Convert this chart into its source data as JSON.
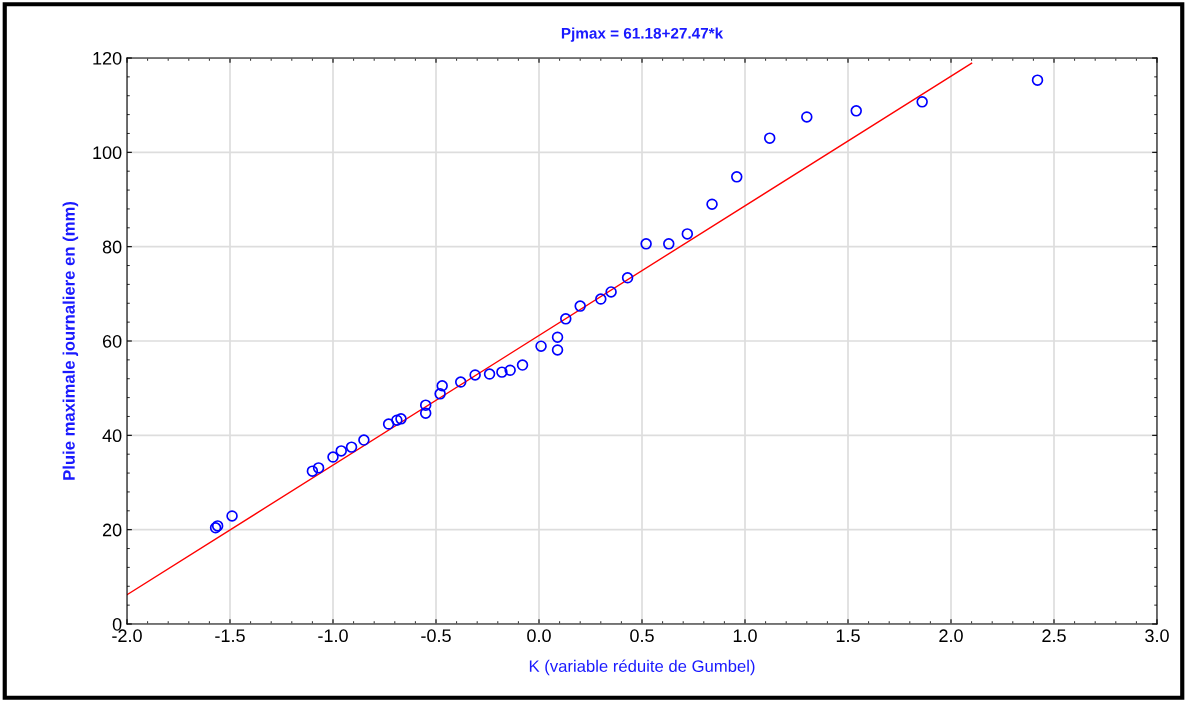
{
  "chart_data": {
    "type": "scatter",
    "title": "Pjmax = 61.18+27.47*k",
    "xlabel": "K (variable réduite de Gumbel)",
    "ylabel": "Pluie maximale journaliere en (mm)",
    "xlim": [
      -2.0,
      3.0
    ],
    "xticks": [
      {
        "value": -2,
        "label": "-2.0"
      },
      {
        "value": -1.5,
        "label": "-1.5"
      },
      {
        "value": -1,
        "label": "-1.0"
      },
      {
        "value": -0.5,
        "label": "-0.5"
      },
      {
        "value": 0,
        "label": "0.0"
      },
      {
        "value": 0.5,
        "label": "0.5"
      },
      {
        "value": 1,
        "label": "1.0"
      },
      {
        "value": 1.5,
        "label": "1.5"
      },
      {
        "value": 2,
        "label": "2.0"
      },
      {
        "value": 2.5,
        "label": "2.5"
      },
      {
        "value": 3,
        "label": "3.0"
      }
    ],
    "ylim": [
      0,
      120
    ],
    "yticks": [
      0,
      20,
      40,
      60,
      80,
      100,
      120
    ],
    "grid": true,
    "marker": "circle",
    "series": [
      {
        "color": "#0000ff",
        "x": [
          -1.57,
          -1.56,
          -1.49,
          -1.1,
          -1.07,
          -1.0,
          -0.96,
          -0.91,
          -0.85,
          -0.73,
          -0.69,
          -0.67,
          -0.55,
          -0.55,
          -0.48,
          -0.47,
          -0.38,
          -0.31,
          -0.24,
          -0.18,
          -0.14,
          -0.08,
          0.01,
          0.09,
          0.09,
          0.13,
          0.2,
          0.3,
          0.35,
          0.43,
          0.52,
          0.63,
          0.72,
          0.84,
          0.96,
          1.12,
          1.3,
          1.54,
          1.86,
          2.42
        ],
        "values": [
          20.4,
          20.8,
          22.9,
          32.4,
          33.1,
          35.4,
          36.7,
          37.5,
          39.0,
          42.4,
          43.2,
          43.5,
          46.4,
          44.7,
          48.8,
          50.5,
          51.3,
          52.8,
          53.0,
          53.4,
          53.8,
          54.9,
          58.9,
          60.8,
          58.1,
          64.7,
          67.4,
          68.9,
          70.4,
          73.4,
          80.6,
          80.6,
          82.7,
          89.0,
          94.8,
          103.0,
          107.5,
          108.8,
          110.7,
          115.3
        ]
      },
      {
        "type": "line",
        "color": "#ff0000",
        "marker": "none",
        "x": [
          -2.0,
          2.1
        ],
        "values": [
          6.2,
          118.9
        ]
      }
    ]
  }
}
